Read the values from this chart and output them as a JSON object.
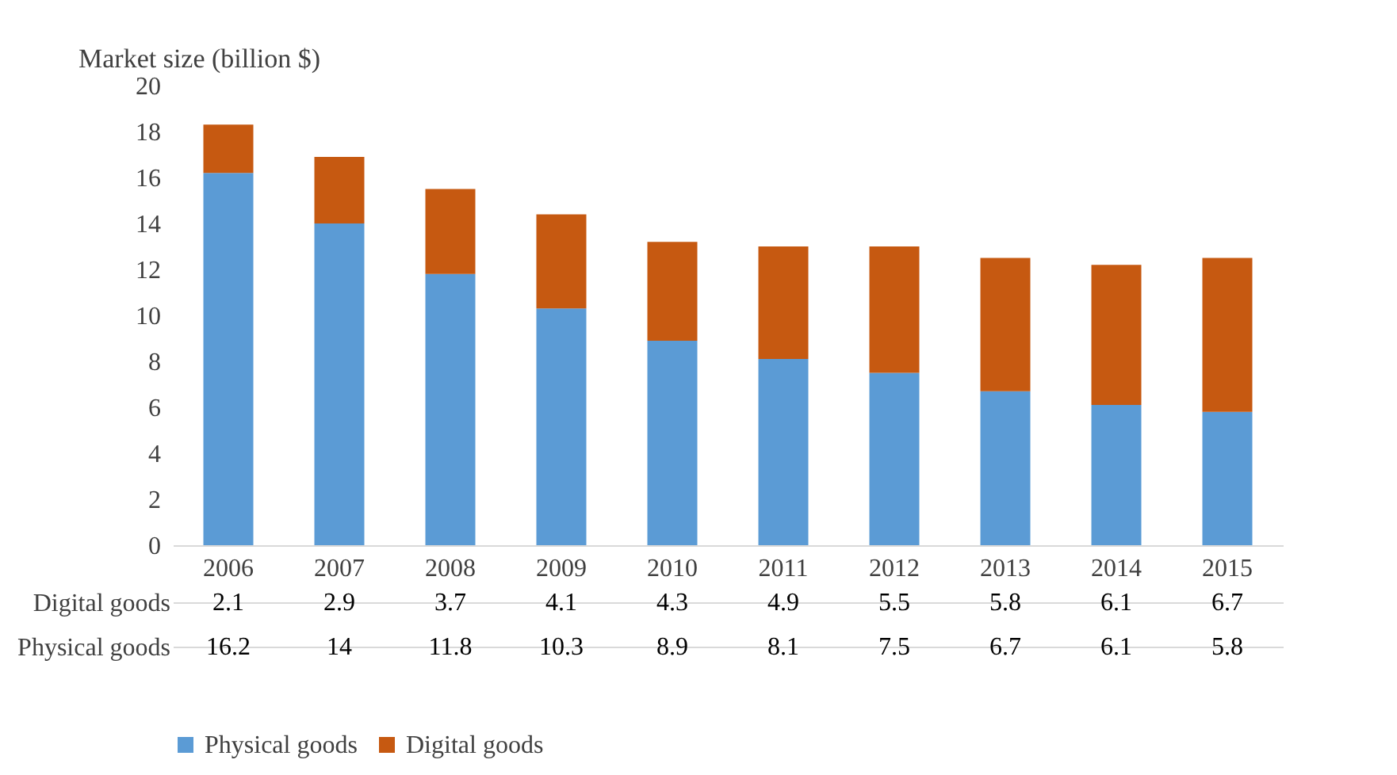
{
  "chart_data": {
    "type": "bar",
    "ylabel": "Market size (billion $)",
    "categories": [
      "2006",
      "2007",
      "2008",
      "2009",
      "2010",
      "2011",
      "2012",
      "2013",
      "2014",
      "2015"
    ],
    "series": [
      {
        "name": "Physical goods",
        "color": "#5b9bd5",
        "values": [
          16.2,
          14,
          11.8,
          10.3,
          8.9,
          8.1,
          7.5,
          6.7,
          6.1,
          5.8
        ]
      },
      {
        "name": "Digital goods",
        "color": "#c65911",
        "values": [
          2.1,
          2.9,
          3.7,
          4.1,
          4.3,
          4.9,
          5.5,
          5.8,
          6.1,
          6.7
        ]
      }
    ],
    "stacked": true,
    "ylim": [
      0,
      20
    ],
    "yticks": [
      0,
      2,
      4,
      6,
      8,
      10,
      12,
      14,
      16,
      18,
      20
    ],
    "data_labels": true,
    "legend": "bottom",
    "grid": false
  }
}
